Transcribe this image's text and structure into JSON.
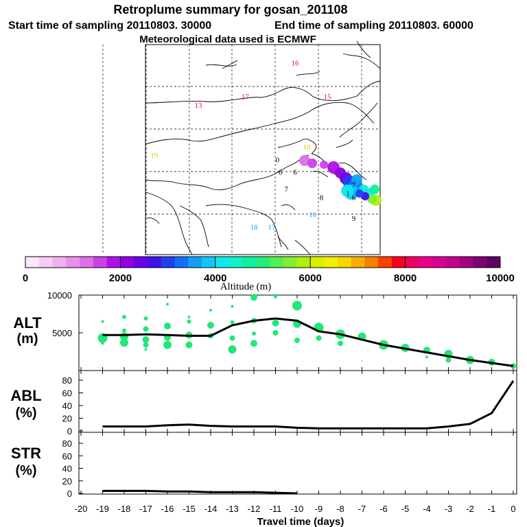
{
  "header": {
    "title": "Retroplume summary for gosan_201108",
    "start": "Start time of sampling 20110803. 30000",
    "end": "End time of sampling 20110803. 60000",
    "met": "Meteorological data used is ECMWF"
  },
  "colors": {
    "black": "#000000",
    "scale": [
      "#fbe6fb",
      "#f6ccf6",
      "#f0b0f0",
      "#e890ec",
      "#dc70e8",
      "#cc40e8",
      "#b010e8",
      "#9000e0",
      "#6a00e8",
      "#4010e8",
      "#2040f0",
      "#1070f8",
      "#10a0f8",
      "#10c8f8",
      "#10e8f0",
      "#10f0d0",
      "#10f0a0",
      "#20f078",
      "#50f050",
      "#80f030",
      "#b0f010",
      "#d8f000",
      "#f0f000",
      "#f8d800",
      "#f8b000",
      "#f88000",
      "#f84000",
      "#f80020",
      "#f00060",
      "#e8008a",
      "#d80090",
      "#c00090",
      "#a00080",
      "#800070",
      "#600060"
    ],
    "trajectory": "#20e878"
  },
  "map": {
    "labels": [
      {
        "text": "13",
        "lon": 88,
        "lat": 50,
        "color": "#e0004a"
      },
      {
        "text": "17",
        "lon": 104,
        "lat": 52,
        "color": "#e0004a"
      },
      {
        "text": "16",
        "lon": 121,
        "lat": 60,
        "color": "#e0004a"
      },
      {
        "text": "15",
        "lon": 132,
        "lat": 52,
        "color": "#e0004a"
      },
      {
        "text": "19",
        "lon": 73,
        "lat": 38,
        "color": "#d0d000"
      },
      {
        "text": "10",
        "lon": 125,
        "lat": 40,
        "color": "#d0d000"
      },
      {
        "text": "0",
        "lon": 115,
        "lat": 37,
        "color": "#000000"
      },
      {
        "text": "6",
        "lon": 116,
        "lat": 34,
        "color": "#000000"
      },
      {
        "text": "6",
        "lon": 121,
        "lat": 34,
        "color": "#000000"
      },
      {
        "text": "7",
        "lon": 118,
        "lat": 30,
        "color": "#000000"
      },
      {
        "text": "8",
        "lon": 130,
        "lat": 28,
        "color": "#000000"
      },
      {
        "text": "16",
        "lon": 127,
        "lat": 24,
        "color": "#10a0f8"
      },
      {
        "text": "18",
        "lon": 107,
        "lat": 21,
        "color": "#10a0f8"
      },
      {
        "text": "17",
        "lon": 113,
        "lat": 21,
        "color": "#10a0f8"
      },
      {
        "text": "9",
        "lon": 141,
        "lat": 23,
        "color": "#000000"
      },
      {
        "text": "7",
        "lon": 141,
        "lat": 31,
        "color": "#000000"
      },
      {
        "text": "1",
        "lon": 139,
        "lat": 29,
        "color": "#000000"
      },
      {
        "text": "6",
        "lon": 141,
        "lat": 28,
        "color": "#000000"
      }
    ]
  },
  "colorbar": {
    "title": "Altitude (m)",
    "ticks": [
      "0",
      "2000",
      "4000",
      "6000",
      "8000",
      "10000"
    ]
  },
  "panels": {
    "alt": {
      "label1": "ALT",
      "label2": "(m)",
      "ticks": [
        "5000",
        "10000"
      ]
    },
    "abl": {
      "label1": "ABL",
      "label2": "(%)",
      "ticks": [
        "0",
        "20",
        "40",
        "60",
        "80"
      ]
    },
    "str": {
      "label1": "STR",
      "label2": "(%)",
      "ticks": [
        "0",
        "20",
        "40",
        "60",
        "80"
      ]
    }
  },
  "xaxis": {
    "label": "Travel time (days)",
    "ticks": [
      "-20",
      "-19",
      "-18",
      "-17",
      "-16",
      "-15",
      "-14",
      "-13",
      "-12",
      "-11",
      "-10",
      "-9",
      "-8",
      "-7",
      "-6",
      "-5",
      "-4",
      "-3",
      "-2",
      "-1",
      "0"
    ]
  },
  "chart_data": [
    {
      "type": "line",
      "title": "ALT",
      "xlabel": "Travel time (days)",
      "ylabel": "(m)",
      "xlim": [
        -20,
        0
      ],
      "ylim": [
        0,
        10000
      ],
      "x": [
        -19,
        -18,
        -17,
        -16,
        -15,
        -14,
        -13,
        -12,
        -11,
        -10,
        -9,
        -8,
        -7,
        -6,
        -5,
        -4,
        -3,
        -2,
        -1,
        0
      ],
      "values": [
        4700,
        4700,
        4800,
        4700,
        4600,
        4600,
        6000,
        6600,
        6900,
        6600,
        5200,
        4800,
        4100,
        3400,
        2900,
        2400,
        1900,
        1400,
        1000,
        600
      ],
      "scatter": [
        {
          "x": -19,
          "y": 4300,
          "s": 7
        },
        {
          "x": -19,
          "y": 6500,
          "s": 2
        },
        {
          "x": -19,
          "y": 3600,
          "s": 2
        },
        {
          "x": -18,
          "y": 4500,
          "s": 6
        },
        {
          "x": -18,
          "y": 3700,
          "s": 6
        },
        {
          "x": -18,
          "y": 5300,
          "s": 3
        },
        {
          "x": -18,
          "y": 7100,
          "s": 3
        },
        {
          "x": -17,
          "y": 4100,
          "s": 5
        },
        {
          "x": -17,
          "y": 3400,
          "s": 4
        },
        {
          "x": -17,
          "y": 5500,
          "s": 4
        },
        {
          "x": -17,
          "y": 6900,
          "s": 3
        },
        {
          "x": -17,
          "y": 2800,
          "s": 2
        },
        {
          "x": -16,
          "y": 4400,
          "s": 5
        },
        {
          "x": -16,
          "y": 3400,
          "s": 6
        },
        {
          "x": -16,
          "y": 5900,
          "s": 5
        },
        {
          "x": -16,
          "y": 8800,
          "s": 2
        },
        {
          "x": -15,
          "y": 4700,
          "s": 5
        },
        {
          "x": -15,
          "y": 3400,
          "s": 5
        },
        {
          "x": -15,
          "y": 6500,
          "s": 3
        },
        {
          "x": -15,
          "y": 7100,
          "s": 2
        },
        {
          "x": -14,
          "y": 4600,
          "s": 4
        },
        {
          "x": -14,
          "y": 6000,
          "s": 5
        },
        {
          "x": -14,
          "y": 8000,
          "s": 2
        },
        {
          "x": -13,
          "y": 2800,
          "s": 6
        },
        {
          "x": -13,
          "y": 4300,
          "s": 4
        },
        {
          "x": -13,
          "y": 6400,
          "s": 3
        },
        {
          "x": -13,
          "y": 8500,
          "s": 2
        },
        {
          "x": -12,
          "y": 3600,
          "s": 5
        },
        {
          "x": -12,
          "y": 4900,
          "s": 3
        },
        {
          "x": -12,
          "y": 6600,
          "s": 4
        },
        {
          "x": -12,
          "y": 9700,
          "s": 5
        },
        {
          "x": -11,
          "y": 5000,
          "s": 4
        },
        {
          "x": -11,
          "y": 6300,
          "s": 5
        },
        {
          "x": -11,
          "y": 9900,
          "s": 3
        },
        {
          "x": -10,
          "y": 4000,
          "s": 4
        },
        {
          "x": -10,
          "y": 6200,
          "s": 6
        },
        {
          "x": -10,
          "y": 8600,
          "s": 7
        },
        {
          "x": -9,
          "y": 5700,
          "s": 7
        },
        {
          "x": -9,
          "y": 4300,
          "s": 4
        },
        {
          "x": -8,
          "y": 4800,
          "s": 7
        },
        {
          "x": -8,
          "y": 3600,
          "s": 4
        },
        {
          "x": -7,
          "y": 4500,
          "s": 6
        },
        {
          "x": -7,
          "y": 1300,
          "s": 1
        },
        {
          "x": -6,
          "y": 3400,
          "s": 7
        },
        {
          "x": -5,
          "y": 3000,
          "s": 6
        },
        {
          "x": -4,
          "y": 2700,
          "s": 5
        },
        {
          "x": -4,
          "y": 1800,
          "s": 2
        },
        {
          "x": -3,
          "y": 2200,
          "s": 6
        },
        {
          "x": -3,
          "y": 1400,
          "s": 4
        },
        {
          "x": -2,
          "y": 1400,
          "s": 6
        },
        {
          "x": -1,
          "y": 1100,
          "s": 5
        },
        {
          "x": 0,
          "y": 600,
          "s": 4
        }
      ]
    },
    {
      "type": "line",
      "title": "ABL",
      "xlabel": "Travel time (days)",
      "ylabel": "(%)",
      "xlim": [
        -20,
        0
      ],
      "ylim": [
        0,
        80
      ],
      "x": [
        -19,
        -18,
        -17,
        -16,
        -15,
        -14,
        -13,
        -12,
        -11,
        -10,
        -9,
        -8,
        -7,
        -6,
        -5,
        -4,
        -3,
        -2,
        -1,
        0
      ],
      "values": [
        7,
        7,
        7,
        9,
        10,
        8,
        7,
        7,
        7,
        5,
        4,
        4,
        4,
        4,
        4,
        4,
        7,
        11,
        28,
        79
      ]
    },
    {
      "type": "line",
      "title": "STR",
      "xlabel": "Travel time (days)",
      "ylabel": "(%)",
      "xlim": [
        -20,
        0
      ],
      "ylim": [
        0,
        80
      ],
      "x": [
        -19,
        -18,
        -17,
        -16,
        -15,
        -14,
        -13,
        -12,
        -11,
        -10
      ],
      "values": [
        4,
        4,
        4,
        3,
        3,
        2,
        2,
        2,
        1,
        0
      ]
    }
  ]
}
